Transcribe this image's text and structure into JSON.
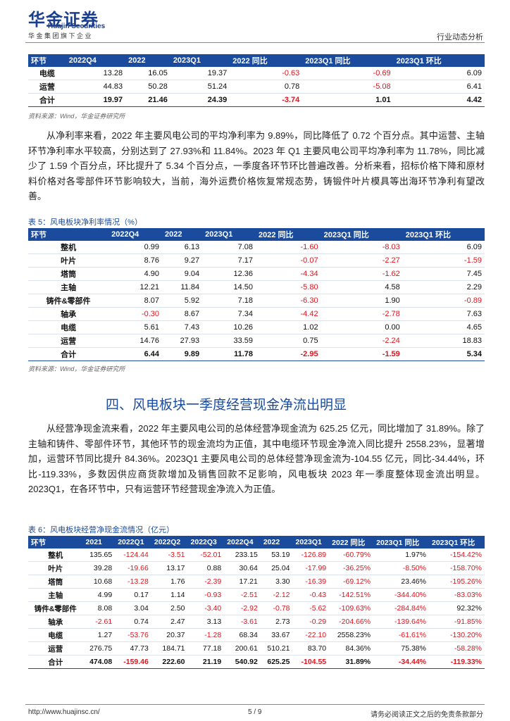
{
  "header": {
    "logo": "华金证券",
    "logo_en": "Huajin Securities",
    "slogan": "华 金 集 团 旗 下 企 业",
    "report_type": "行业动态分析"
  },
  "table1": {
    "header": [
      "环节",
      "2022Q4",
      "2022",
      "2023Q1",
      "2022 同比",
      "2023Q1 同比",
      "2023Q1 环比"
    ],
    "rows": [
      [
        "电缆",
        "13.28",
        "16.05",
        "19.37",
        "-0.63",
        "-0.69",
        "6.09"
      ],
      [
        "运营",
        "44.83",
        "50.28",
        "51.24",
        "0.78",
        "-5.08",
        "6.41"
      ],
      [
        "合计",
        "19.97",
        "21.46",
        "24.39",
        "-3.74",
        "1.01",
        "4.42"
      ]
    ],
    "source": "资料来源：Wind，华金证券研究所"
  },
  "paragraph1": "从净利率来看，2022 年主要风电公司的平均净利率为 9.89%，同比降低了 0.72 个百分点。其中运营、主轴环节净利率水平较高，分别达到了 27.93%和 11.84%。2023 年 Q1 主要风电公司平均净利率为 11.78%，同比减少了 1.59 个百分点，环比提升了 5.34 个百分点，一季度各环节环比普遍改善。分析来看，招标价格下降和原材料价格对各零部件环节影响较大，当前，海外运费价格恢复常规态势，铸锻件叶片模具等出海环节净利有望改善。",
  "table5": {
    "caption": "表 5：风电板块净利率情况（%）",
    "header": [
      "环节",
      "2022Q4",
      "2022",
      "2023Q1",
      "2022 同比",
      "2023Q1 同比",
      "2023Q1 环比"
    ],
    "rows": [
      [
        "整机",
        "0.99",
        "6.13",
        "7.08",
        "-1.60",
        "-8.03",
        "6.09"
      ],
      [
        "叶片",
        "8.76",
        "9.27",
        "7.17",
        "-0.07",
        "-2.27",
        "-1.59"
      ],
      [
        "塔筒",
        "4.90",
        "9.04",
        "12.36",
        "-4.34",
        "-1.62",
        "7.45"
      ],
      [
        "主轴",
        "12.21",
        "11.84",
        "14.50",
        "-5.80",
        "4.58",
        "2.29"
      ],
      [
        "铸件&零部件",
        "8.07",
        "5.92",
        "7.18",
        "-6.30",
        "1.90",
        "-0.89"
      ],
      [
        "轴承",
        "-0.30",
        "8.67",
        "7.34",
        "-4.42",
        "-2.78",
        "7.63"
      ],
      [
        "电缆",
        "5.61",
        "7.43",
        "10.26",
        "1.02",
        "0.00",
        "4.65"
      ],
      [
        "运营",
        "14.76",
        "27.93",
        "33.59",
        "0.75",
        "-2.24",
        "18.83"
      ],
      [
        "合计",
        "6.44",
        "9.89",
        "11.78",
        "-2.95",
        "-1.59",
        "5.34"
      ]
    ],
    "source": "资料来源：Wind，华金证券研究所"
  },
  "section_heading": "四、风电板块一季度经营现金净流出明显",
  "paragraph2": "从经营净现金流来看，2022 年主要风电公司的总体经营净现金流为 625.25 亿元，同比增加了 31.89%。除了主轴和铸件、零部件环节，其他环节的现金流均为正值，其中电缆环节现金净流入同比提升 2558.23%，显著增加，运营环节同比提升 84.36%。2023Q1 主要风电公司的总体经营净现金流为-104.55 亿元，同比-34.44%，环比-119.33%，多数因供应商货款增加及销售回款不足影响，风电板块 2023 年一季度整体现金流出明显。2023Q1，在各环节中，只有运营环节经营现金净流入为正值。",
  "table6": {
    "caption": "表 6：风电板块经营净现金流情况（亿元）",
    "header": [
      "环节",
      "2021",
      "2022Q1",
      "2022Q2",
      "2022Q3",
      "2022Q4",
      "2022",
      "2023Q1",
      "2022 同比",
      "2023Q1 同比",
      "2023Q1 环比"
    ],
    "rows": [
      [
        "整机",
        "135.65",
        "-124.44",
        "-3.51",
        "-52.01",
        "233.15",
        "53.19",
        "-126.89",
        "-60.79%",
        "1.97%",
        "-154.42%"
      ],
      [
        "叶片",
        "39.28",
        "-19.66",
        "13.17",
        "0.88",
        "30.64",
        "25.04",
        "-17.99",
        "-36.25%",
        "-8.50%",
        "-158.70%"
      ],
      [
        "塔筒",
        "10.68",
        "-13.28",
        "1.76",
        "-2.39",
        "17.21",
        "3.30",
        "-16.39",
        "-69.12%",
        "23.46%",
        "-195.26%"
      ],
      [
        "主轴",
        "4.99",
        "0.17",
        "1.14",
        "-0.93",
        "-2.51",
        "-2.12",
        "-0.43",
        "-142.51%",
        "-344.40%",
        "-83.03%"
      ],
      [
        "铸件&零部件",
        "8.08",
        "3.04",
        "2.50",
        "-3.40",
        "-2.92",
        "-0.78",
        "-5.62",
        "-109.63%",
        "-284.84%",
        "92.32%"
      ],
      [
        "轴承",
        "-2.61",
        "0.74",
        "2.47",
        "3.13",
        "-3.61",
        "2.73",
        "-0.29",
        "-204.66%",
        "-139.64%",
        "-91.85%"
      ],
      [
        "电缆",
        "1.27",
        "-53.76",
        "20.37",
        "-1.28",
        "68.34",
        "33.67",
        "-22.10",
        "2558.23%",
        "-61.61%",
        "-130.20%"
      ],
      [
        "运营",
        "276.75",
        "47.73",
        "184.71",
        "77.18",
        "200.61",
        "510.21",
        "83.70",
        "84.36%",
        "75.38%",
        "-58.28%"
      ],
      [
        "合计",
        "474.08",
        "-159.46",
        "222.60",
        "21.19",
        "540.92",
        "625.25",
        "-104.55",
        "31.89%",
        "-34.44%",
        "-119.33%"
      ]
    ]
  },
  "footer": {
    "url": "http://www.huajinsc.cn/",
    "page": "5 / 9",
    "disclaimer": "请务必阅读正文之后的免责条款部分"
  }
}
